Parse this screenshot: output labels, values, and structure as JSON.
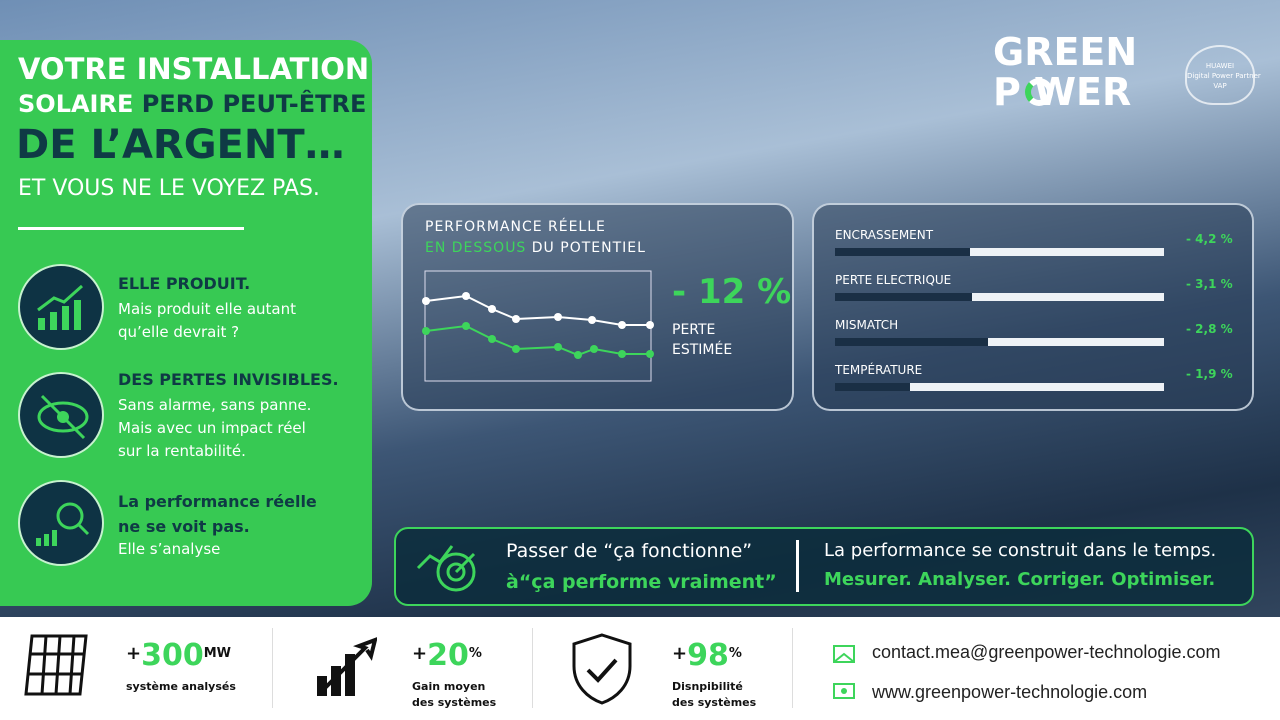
{
  "header": {
    "line1": "VOTRE INSTALLATION",
    "line2a": "SOLAIRE",
    "line2b": "PERD PEUT-ÊTRE",
    "line3": "DE L’ARGENT…",
    "line4": "ET VOUS NE LE VOYEZ PAS."
  },
  "points": [
    {
      "title": "ELLE PRODUIT.",
      "lines": [
        "Mais produit elle autant",
        "qu’elle devrait ?"
      ]
    },
    {
      "title": "DES PERTES INVISIBLES.",
      "lines": [
        "Sans alarme, sans panne.",
        "Mais avec un  impact réel",
        "sur la rentabilité."
      ]
    },
    {
      "title": "La performance réelle",
      "title2": "ne se voit pas.",
      "lines": [
        "Elle  s’analyse"
      ]
    }
  ],
  "logo": {
    "green": "GREEN",
    "power": "P   WER",
    "badge": [
      "HUAWEI",
      "Digital Power Partner",
      "VAP"
    ]
  },
  "performance": {
    "title": "PERFORMANCE RÉELLE",
    "sub_a": "EN DESSOUS",
    "sub_b": "DU POTENTIEL",
    "loss": "- 12 %",
    "loss_label": [
      "PERTE",
      "ESTIMÉE"
    ]
  },
  "losses": [
    {
      "name": "ENCRASSEMENT",
      "value": "- 4,2 %"
    },
    {
      "name": "PERTE ELECTRIQUE",
      "value": "- 3,1 %"
    },
    {
      "name": "MISMATCH",
      "value": "- 2,8 %"
    },
    {
      "name": "TEMPÉRATURE",
      "value": "- 1,9 %"
    }
  ],
  "banner": {
    "left1": "Passer de “ça fonctionne”",
    "left2": "à“ça performe vraiment”",
    "right1": "La performance se construit dans le temps.",
    "right2": "Mesurer. Analyser. Corriger. Optimiser."
  },
  "stats": [
    {
      "prefix": "+",
      "value": "300",
      "unit": "MW",
      "lines": [
        "système analysés"
      ]
    },
    {
      "prefix": "+",
      "value": "20",
      "unit": "%",
      "lines": [
        "Gain moyen",
        "des systèmes"
      ]
    },
    {
      "prefix": "+",
      "value": "98",
      "unit": "%",
      "lines": [
        "Disnpibilité",
        "des systèmes"
      ]
    }
  ],
  "contact": {
    "email": "contact.mea@greenpower-technologie.com",
    "web": "www.greenpower-technologie.com"
  }
}
